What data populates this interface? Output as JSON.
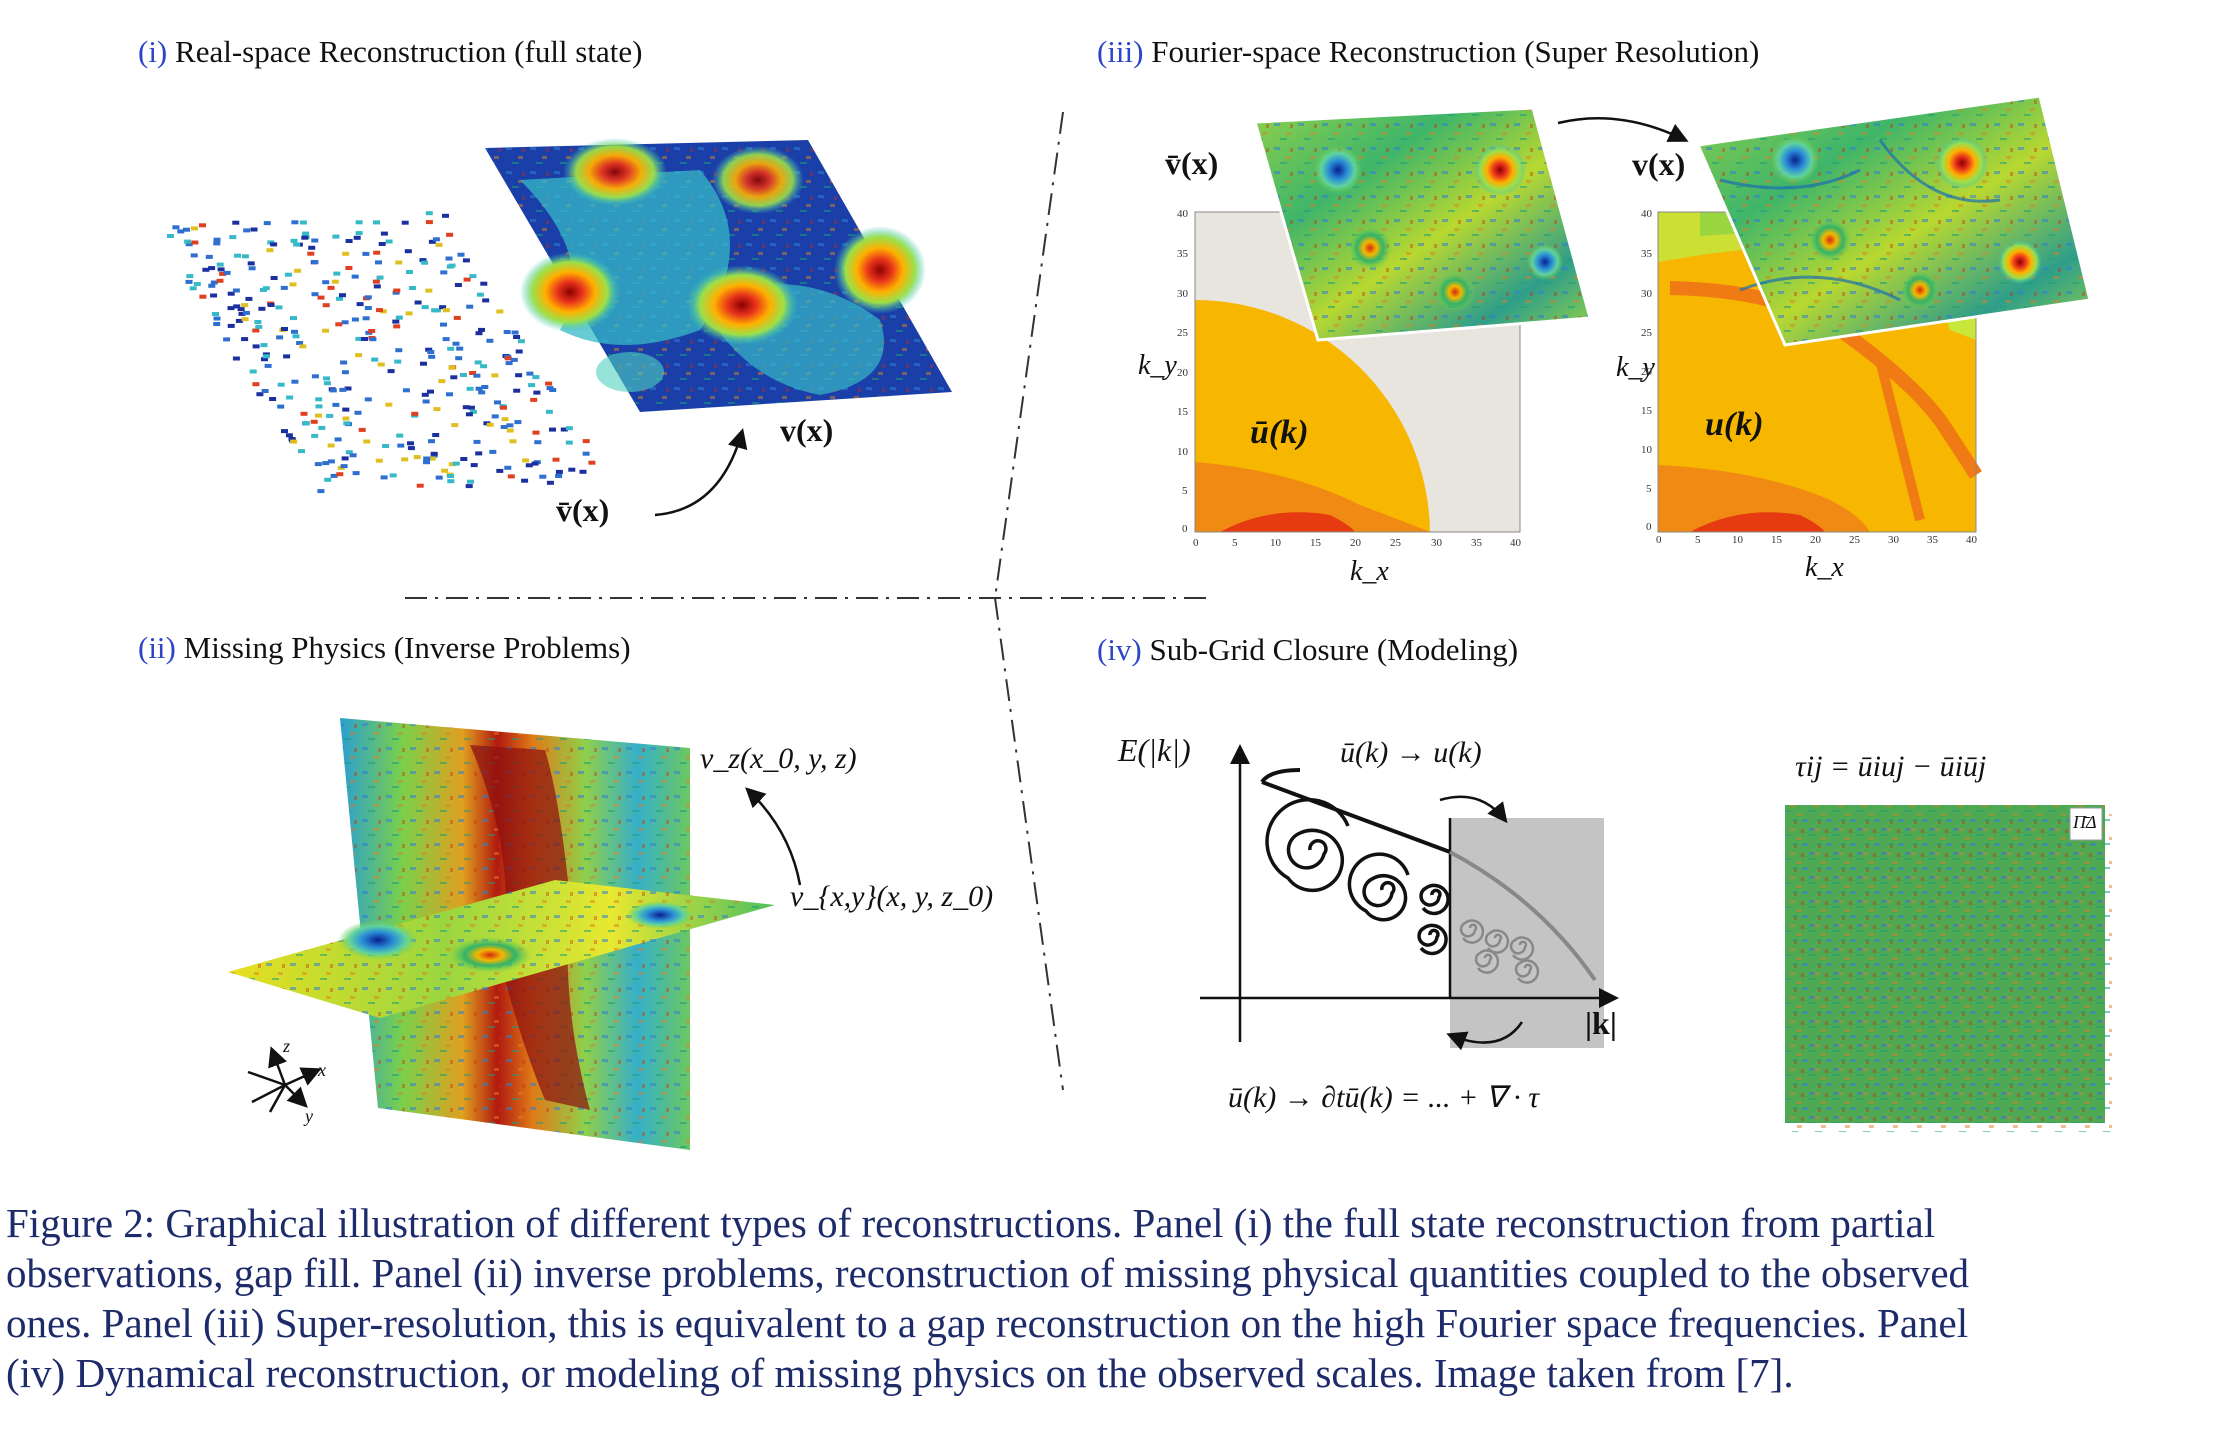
{
  "panels": {
    "p1": {
      "num": "(i)",
      "title": "Real-space Reconstruction (full state)",
      "label_obs": "v̄(x)",
      "label_full": "v(x)"
    },
    "p2": {
      "num": "(ii)",
      "title": "Missing Physics (Inverse Problems)",
      "label_vz": "v_z(x_0, y, z)",
      "label_vxy": "v_{x,y}(x, y, z_0)",
      "axis_z": "z",
      "axis_x": "x",
      "axis_y": "y"
    },
    "p3": {
      "num": "(iii)",
      "title": "Fourier-space Reconstruction (Super Resolution)",
      "label_vbar": "v̄(x)",
      "label_v": "v(x)",
      "label_ubar_k": "ū(k)",
      "label_u_k": "u(k)",
      "ky": "k_y",
      "kx": "k_x",
      "ticks": [
        "0",
        "5",
        "10",
        "15",
        "20",
        "25",
        "30",
        "35",
        "40"
      ]
    },
    "p4": {
      "num": "(iv)",
      "title": "Sub-Grid Closure (Modeling)",
      "E_label": "E(|k|)",
      "arrow_top": "ū(k) → u(k)",
      "k_axis": "|k|",
      "eq_bottom": "ū(k) → ∂tū(k) = ... + ∇ · τ",
      "tau_eq": "τij = ūiuj − ūiūj",
      "pi_label": "Π̄Δ"
    }
  },
  "caption": {
    "lines": [
      "Figure 2: Graphical illustration of different types of reconstructions. Panel (i) the full state reconstruction from partial",
      "observations, gap fill. Panel (ii) inverse problems, reconstruction of missing physical quantities coupled to the observed",
      "ones. Panel (iii) Super-resolution, this is equivalent to a gap reconstruction on the high Fourier space frequencies. Panel",
      "(iv) Dynamical reconstruction, or modeling of missing physics on the observed scales. Image taken from [7]."
    ]
  },
  "colors": {
    "link": "#2b45c9",
    "caption": "#1e2b6b",
    "orange": "#f5b800",
    "red_orange": "#f06a10",
    "grey": "#c8c8c8"
  }
}
